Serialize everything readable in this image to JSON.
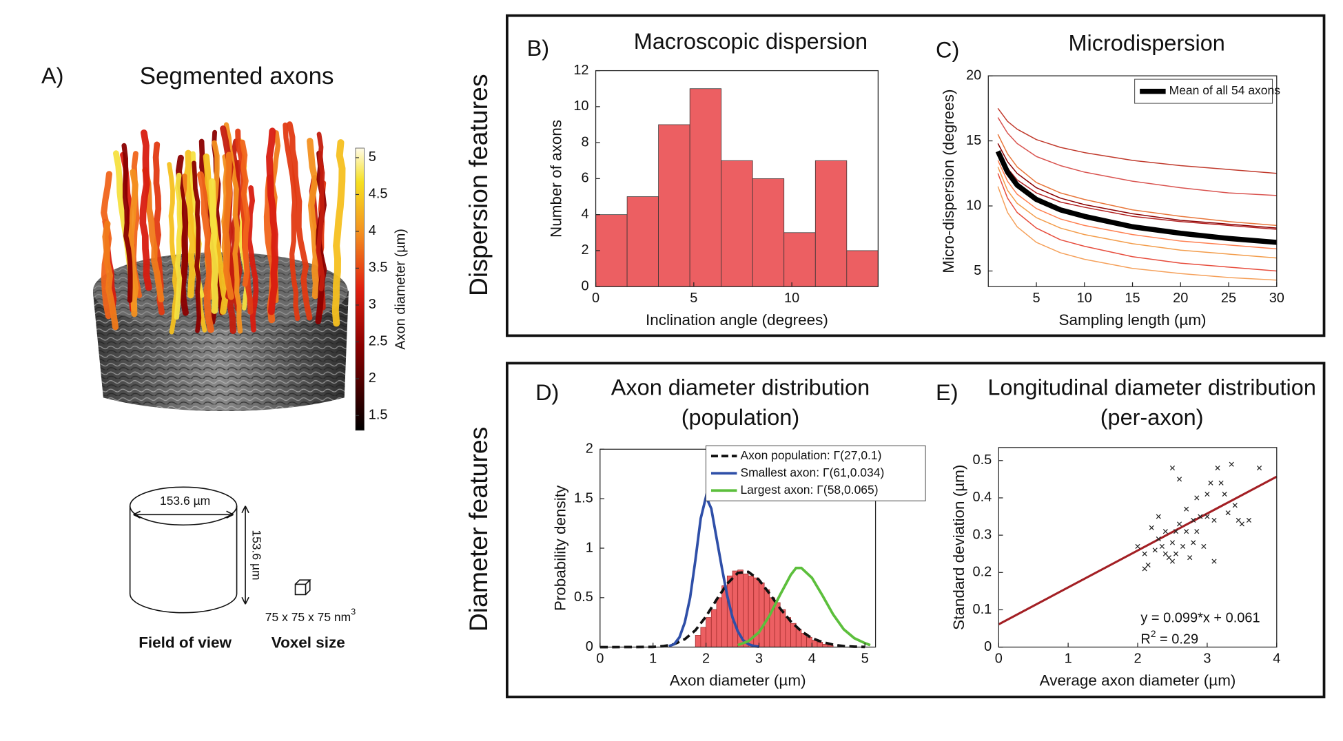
{
  "panel_a": {
    "label": "A)",
    "title": "Segmented axons",
    "colorbar": {
      "label": "Axon diameter (µm)",
      "clim": [
        1.3,
        5.13
      ],
      "ticks": [
        1.5,
        2,
        2.5,
        3,
        3.5,
        4,
        4.5,
        5
      ]
    },
    "fov_width": "153.6 µm",
    "fov_height": "153.6 µm",
    "fov_caption": "Field of view",
    "voxel_base": "75 x 75 x 75 nm",
    "voxel_exp": "3",
    "voxel_caption": "Voxel size"
  },
  "section_labels": [
    "Dispersion features",
    "Diameter features"
  ],
  "chart_data": [
    {
      "type": "histogram",
      "label": "B)",
      "title": [
        "Macroscopic dispersion"
      ],
      "xlabel": "Inclination angle (degrees)",
      "ylabel": "Number of axons",
      "bins": [
        0,
        1.6,
        3.2,
        4.8,
        6.4,
        8,
        9.6,
        11.2,
        12.8,
        14.4
      ],
      "counts": [
        4,
        5,
        9,
        11,
        7,
        6,
        3,
        7,
        2
      ],
      "color": "#ec5f62",
      "xlim": [
        0,
        14.4
      ],
      "ylim": [
        0,
        12
      ],
      "xticks": [
        0,
        5,
        10
      ],
      "yticks": [
        0,
        2,
        4,
        6,
        8,
        10,
        12
      ]
    },
    {
      "type": "line",
      "label": "C)",
      "title": [
        "Microdispersion"
      ],
      "xlabel": "Sampling length (µm)",
      "ylabel": "Micro-dispersion (degrees)",
      "x": [
        1,
        2,
        3,
        5,
        7.5,
        10,
        15,
        20,
        25,
        30
      ],
      "series": [
        {
          "name": "Mean of all 54 axons",
          "color": "#000000",
          "width": 6,
          "values": [
            14.2,
            12.6,
            11.6,
            10.5,
            9.7,
            9.2,
            8.4,
            7.9,
            7.5,
            7.2
          ]
        },
        {
          "color": "#c0392b",
          "values": [
            17.5,
            16.5,
            15.9,
            15.1,
            14.5,
            14.1,
            13.5,
            13.1,
            12.8,
            12.5
          ]
        },
        {
          "color": "#d9534f",
          "values": [
            16.8,
            15.6,
            14.8,
            13.8,
            13.1,
            12.6,
            11.9,
            11.4,
            11.0,
            10.8
          ]
        },
        {
          "color": "#e8763a",
          "values": [
            15.5,
            14.0,
            13.0,
            11.8,
            11.0,
            10.5,
            9.7,
            9.2,
            8.8,
            8.5
          ]
        },
        {
          "color": "#8b0000",
          "values": [
            14.8,
            13.4,
            12.5,
            11.4,
            10.6,
            10.1,
            9.4,
            8.9,
            8.6,
            8.3
          ]
        },
        {
          "color": "#f39c4a",
          "values": [
            13.0,
            11.2,
            10.2,
            9.1,
            8.3,
            7.8,
            7.1,
            6.6,
            6.3,
            6.0
          ]
        },
        {
          "color": "#e74c3c",
          "values": [
            12.5,
            10.6,
            9.5,
            8.3,
            7.4,
            6.9,
            6.1,
            5.6,
            5.3,
            5.0
          ]
        },
        {
          "color": "#f5a05a",
          "values": [
            11.5,
            9.5,
            8.4,
            7.2,
            6.4,
            5.9,
            5.2,
            4.8,
            4.5,
            4.3
          ]
        },
        {
          "color": "#b22222",
          "values": [
            14.0,
            12.9,
            12.0,
            11.0,
            10.3,
            9.9,
            9.2,
            8.8,
            8.5,
            8.2
          ]
        },
        {
          "color": "#ff7f50",
          "values": [
            13.5,
            11.9,
            10.9,
            9.8,
            9.0,
            8.5,
            7.8,
            7.3,
            7.0,
            6.7
          ]
        }
      ],
      "xlim": [
        0,
        30
      ],
      "ylim": [
        3.8,
        20
      ],
      "xticks": [
        5,
        10,
        15,
        20,
        25,
        30
      ],
      "yticks": [
        5,
        10,
        15,
        20
      ],
      "legend": "upper right"
    },
    {
      "type": "histogram",
      "label": "D)",
      "title": [
        "Axon diameter distribution",
        "(population)"
      ],
      "xlabel": "Axon diameter (µm)",
      "ylabel": "Probability density",
      "bins": [
        1.8,
        1.9,
        2.0,
        2.1,
        2.2,
        2.3,
        2.4,
        2.5,
        2.6,
        2.7,
        2.8,
        2.9,
        3.0,
        3.1,
        3.2,
        3.3,
        3.4,
        3.5,
        3.6,
        3.7,
        3.8,
        3.9,
        4.0,
        4.1,
        4.2,
        4.3,
        4.4
      ],
      "counts": [
        0.12,
        0.2,
        0.3,
        0.38,
        0.5,
        0.62,
        0.72,
        0.77,
        0.78,
        0.74,
        0.72,
        0.7,
        0.65,
        0.58,
        0.5,
        0.45,
        0.38,
        0.3,
        0.24,
        0.18,
        0.14,
        0.1,
        0.07,
        0.05,
        0.03,
        0.02
      ],
      "color": "#ec5f62",
      "series": [
        {
          "name": "Axon population: Γ(27,0.1)",
          "color": "#111111",
          "line_style": "dashed",
          "x": [
            0,
            1.0,
            1.2,
            1.4,
            1.6,
            1.8,
            2.0,
            2.2,
            2.4,
            2.6,
            2.8,
            3.0,
            3.2,
            3.4,
            3.6,
            3.8,
            4.0,
            4.2,
            4.4,
            4.6,
            4.8,
            5.0
          ],
          "values": [
            0,
            0.002,
            0.01,
            0.03,
            0.08,
            0.17,
            0.31,
            0.48,
            0.64,
            0.75,
            0.76,
            0.68,
            0.54,
            0.39,
            0.26,
            0.16,
            0.09,
            0.05,
            0.025,
            0.01,
            0.005,
            0.002
          ]
        },
        {
          "name": "Smallest axon: Γ(61,0.034)",
          "color": "#2f4fa8",
          "line_style": "solid",
          "x": [
            1.3,
            1.4,
            1.5,
            1.6,
            1.7,
            1.8,
            1.9,
            2.0,
            2.1,
            2.2,
            2.3,
            2.4,
            2.5,
            2.6,
            2.7,
            2.8,
            2.9,
            3.0
          ],
          "values": [
            0.01,
            0.03,
            0.1,
            0.25,
            0.5,
            0.88,
            1.3,
            1.52,
            1.4,
            1.1,
            0.8,
            0.52,
            0.3,
            0.16,
            0.07,
            0.03,
            0.012,
            0.004
          ]
        },
        {
          "name": "Largest axon: Γ(58,0.065)",
          "color": "#5cbf3c",
          "line_style": "solid",
          "x": [
            2.6,
            2.8,
            3.0,
            3.2,
            3.4,
            3.6,
            3.7,
            3.8,
            4.0,
            4.2,
            4.4,
            4.6,
            4.8,
            5.0,
            5.1
          ],
          "values": [
            0.02,
            0.06,
            0.15,
            0.32,
            0.53,
            0.73,
            0.8,
            0.8,
            0.7,
            0.52,
            0.33,
            0.18,
            0.09,
            0.04,
            0.02
          ]
        }
      ],
      "xlim": [
        0,
        5.2
      ],
      "ylim": [
        0,
        2
      ],
      "xticks": [
        0,
        1,
        2,
        3,
        4,
        5
      ],
      "yticks": [
        0,
        0.5,
        1,
        1.5,
        2
      ],
      "legend": "upper right"
    },
    {
      "type": "scatter",
      "label": "E)",
      "title": [
        "Longitudinal diameter distribution",
        "(per-axon)"
      ],
      "xlabel": "Average axon diameter (µm)",
      "ylabel": "Standard deviation (µm)",
      "x": [
        2.0,
        2.1,
        2.1,
        2.15,
        2.2,
        2.3,
        2.3,
        2.35,
        2.4,
        2.4,
        2.45,
        2.5,
        2.5,
        2.5,
        2.55,
        2.6,
        2.6,
        2.65,
        2.7,
        2.7,
        2.75,
        2.8,
        2.8,
        2.85,
        2.9,
        2.95,
        3.0,
        3.0,
        3.05,
        3.1,
        3.1,
        3.15,
        3.2,
        3.25,
        3.3,
        3.35,
        3.4,
        3.45,
        3.5,
        3.6,
        3.75,
        2.25,
        2.55,
        2.85
      ],
      "values": [
        0.27,
        0.25,
        0.21,
        0.22,
        0.32,
        0.35,
        0.29,
        0.27,
        0.25,
        0.31,
        0.24,
        0.48,
        0.28,
        0.23,
        0.31,
        0.45,
        0.33,
        0.27,
        0.37,
        0.31,
        0.24,
        0.34,
        0.28,
        0.4,
        0.35,
        0.27,
        0.41,
        0.35,
        0.44,
        0.23,
        0.34,
        0.48,
        0.44,
        0.41,
        0.36,
        0.49,
        0.38,
        0.34,
        0.33,
        0.34,
        0.48,
        0.26,
        0.25,
        0.31
      ],
      "color": "#222222",
      "fit_line": {
        "x": [
          0,
          4
        ],
        "y": [
          0.061,
          0.457
        ],
        "color": "#a31f24"
      },
      "annotation": "y = 0.099*x + 0.061",
      "r2_base": "R",
      "r2_exp": "2",
      "r2_rest": " = 0.29",
      "xlim": [
        0,
        4
      ],
      "ylim": [
        0,
        0.535
      ],
      "xticks": [
        0,
        1,
        2,
        3,
        4
      ],
      "yticks": [
        0,
        0.1,
        0.2,
        0.3,
        0.4,
        0.5
      ]
    }
  ]
}
